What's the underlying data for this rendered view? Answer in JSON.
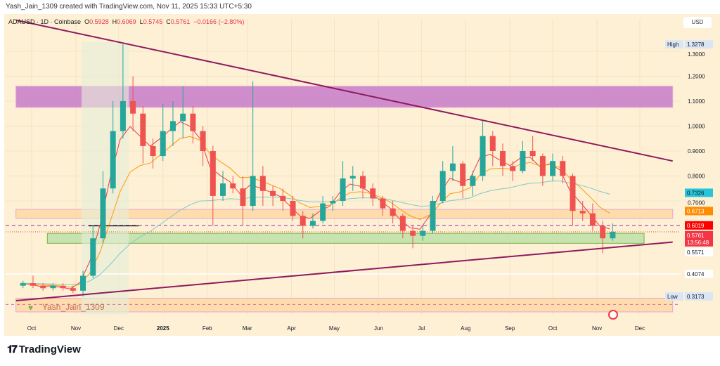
{
  "credit": "Yash_Jain_1309 created with TradingView.com, Nov 11, 2025 15:33 UTC+5:30",
  "legend": {
    "symbol": "ADAUSD · 1D · Coinbase",
    "o_label": "O",
    "o": "0.5928",
    "h_label": "H",
    "h": "0.6069",
    "l_label": "L",
    "l": "0.5745",
    "c_label": "C",
    "c": "0.5761",
    "change": "−0.0166 (−2.80%)"
  },
  "currency_button": "USD",
  "watermark": "Yash_Jain_1309",
  "brand": "TradingView",
  "colors": {
    "up": "#26a69a",
    "down": "#ef5350",
    "trendline": "#8e1a5e",
    "resistance_zone": "#c77dc9",
    "support_zone": "#b9e0a5",
    "ema_fast": "#f23645",
    "ema_mid": "#ff9800",
    "ema_slow": "#80cbc4",
    "background": "#fdf0d5"
  },
  "chart_data": {
    "type": "candlestick",
    "timeframe": "1W approximated from 1D",
    "ylim": [
      0.25,
      1.42
    ],
    "y_ticks": [
      "1.3000",
      "1.2000",
      "1.1000",
      "1.0000",
      "0.9000",
      "0.8000",
      "0.7000"
    ],
    "x_ticks": [
      [
        "Oct",
        "2024-10-01"
      ],
      [
        "Nov",
        "2024-11-01"
      ],
      [
        "Dec",
        "2024-12-01"
      ],
      [
        "2025",
        "2025-01-01"
      ],
      [
        "Feb",
        "2025-02-01"
      ],
      [
        "Mar",
        "2025-03-01"
      ],
      [
        "Apr",
        "2025-04-01"
      ],
      [
        "May",
        "2025-05-01"
      ],
      [
        "Jun",
        "2025-06-01"
      ],
      [
        "Jul",
        "2025-07-01"
      ],
      [
        "Aug",
        "2025-08-01"
      ],
      [
        "Sep",
        "2025-09-01"
      ],
      [
        "Oct",
        "2025-10-01"
      ],
      [
        "Nov",
        "2025-11-01"
      ],
      [
        "Dec",
        "2025-12-01"
      ]
    ],
    "candles": [
      [
        "2024-09-23",
        0.36,
        0.38,
        0.35,
        0.37
      ],
      [
        "2024-09-30",
        0.37,
        0.4,
        0.35,
        0.36
      ],
      [
        "2024-10-07",
        0.36,
        0.37,
        0.34,
        0.35
      ],
      [
        "2024-10-14",
        0.35,
        0.37,
        0.34,
        0.36
      ],
      [
        "2024-10-21",
        0.36,
        0.37,
        0.34,
        0.35
      ],
      [
        "2024-10-28",
        0.35,
        0.36,
        0.33,
        0.34
      ],
      [
        "2024-11-04",
        0.34,
        0.42,
        0.3173,
        0.4
      ],
      [
        "2024-11-11",
        0.4,
        0.6,
        0.39,
        0.55
      ],
      [
        "2024-11-18",
        0.55,
        0.82,
        0.53,
        0.75
      ],
      [
        "2024-11-25",
        0.75,
        1.1,
        0.73,
        0.98
      ],
      [
        "2024-12-02",
        0.98,
        1.3278,
        0.95,
        1.1
      ],
      [
        "2024-12-09",
        1.1,
        1.2,
        0.98,
        1.05
      ],
      [
        "2024-12-16",
        1.05,
        1.08,
        0.85,
        0.92
      ],
      [
        "2024-12-23",
        0.92,
        0.95,
        0.83,
        0.88
      ],
      [
        "2024-12-30",
        0.88,
        1.09,
        0.86,
        0.98
      ],
      [
        "2025-01-06",
        0.98,
        1.1,
        0.92,
        1.02
      ],
      [
        "2025-01-13",
        1.02,
        1.16,
        0.95,
        1.05
      ],
      [
        "2025-01-20",
        1.05,
        1.08,
        0.93,
        0.98
      ],
      [
        "2025-01-27",
        0.98,
        1.0,
        0.84,
        0.9
      ],
      [
        "2025-02-03",
        0.9,
        0.92,
        0.6,
        0.72
      ],
      [
        "2025-02-10",
        0.72,
        0.82,
        0.7,
        0.77
      ],
      [
        "2025-02-17",
        0.77,
        0.8,
        0.73,
        0.75
      ],
      [
        "2025-02-24",
        0.75,
        0.8,
        0.6,
        0.68
      ],
      [
        "2025-03-03",
        0.68,
        1.18,
        0.66,
        0.8
      ],
      [
        "2025-03-10",
        0.8,
        0.84,
        0.68,
        0.74
      ],
      [
        "2025-03-17",
        0.74,
        0.76,
        0.68,
        0.72
      ],
      [
        "2025-03-24",
        0.72,
        0.75,
        0.66,
        0.7
      ],
      [
        "2025-03-31",
        0.7,
        0.72,
        0.62,
        0.64
      ],
      [
        "2025-04-07",
        0.64,
        0.66,
        0.55,
        0.6
      ],
      [
        "2025-04-14",
        0.6,
        0.65,
        0.59,
        0.62
      ],
      [
        "2025-04-21",
        0.62,
        0.72,
        0.61,
        0.69
      ],
      [
        "2025-04-28",
        0.69,
        0.72,
        0.66,
        0.7
      ],
      [
        "2025-05-05",
        0.7,
        0.86,
        0.68,
        0.79
      ],
      [
        "2025-05-12",
        0.79,
        0.84,
        0.74,
        0.8
      ],
      [
        "2025-05-19",
        0.8,
        0.82,
        0.71,
        0.75
      ],
      [
        "2025-05-26",
        0.75,
        0.77,
        0.68,
        0.71
      ],
      [
        "2025-06-02",
        0.71,
        0.72,
        0.64,
        0.67
      ],
      [
        "2025-06-09",
        0.67,
        0.7,
        0.61,
        0.64
      ],
      [
        "2025-06-16",
        0.64,
        0.65,
        0.55,
        0.58
      ],
      [
        "2025-06-23",
        0.58,
        0.6,
        0.51,
        0.56
      ],
      [
        "2025-06-30",
        0.56,
        0.6,
        0.54,
        0.58
      ],
      [
        "2025-07-07",
        0.58,
        0.72,
        0.57,
        0.7
      ],
      [
        "2025-07-14",
        0.7,
        0.86,
        0.69,
        0.82
      ],
      [
        "2025-07-21",
        0.82,
        0.92,
        0.78,
        0.85
      ],
      [
        "2025-07-28",
        0.85,
        0.86,
        0.71,
        0.76
      ],
      [
        "2025-08-04",
        0.76,
        0.82,
        0.72,
        0.8
      ],
      [
        "2025-08-11",
        0.8,
        1.02,
        0.78,
        0.96
      ],
      [
        "2025-08-18",
        0.96,
        0.98,
        0.84,
        0.9
      ],
      [
        "2025-08-25",
        0.9,
        0.93,
        0.8,
        0.84
      ],
      [
        "2025-09-01",
        0.84,
        0.86,
        0.78,
        0.82
      ],
      [
        "2025-09-08",
        0.82,
        0.94,
        0.81,
        0.9
      ],
      [
        "2025-09-15",
        0.9,
        0.96,
        0.86,
        0.88
      ],
      [
        "2025-09-22",
        0.88,
        0.89,
        0.76,
        0.8
      ],
      [
        "2025-09-29",
        0.8,
        0.89,
        0.78,
        0.86
      ],
      [
        "2025-10-06",
        0.86,
        0.88,
        0.77,
        0.8
      ],
      [
        "2025-10-13",
        0.8,
        0.81,
        0.6,
        0.66
      ],
      [
        "2025-10-20",
        0.66,
        0.7,
        0.62,
        0.65
      ],
      [
        "2025-10-27",
        0.65,
        0.69,
        0.58,
        0.6
      ],
      [
        "2025-11-03",
        0.6,
        0.62,
        0.49,
        0.55
      ],
      [
        "2025-11-10",
        0.55,
        0.61,
        0.54,
        0.5761
      ]
    ],
    "moving_averages": [
      {
        "color": "#f23645",
        "period": 3
      },
      {
        "color": "#ff9800",
        "period": 7
      },
      {
        "color": "#80cbc4",
        "period": 28
      }
    ],
    "trendlines": [
      {
        "from": [
          "2024-09-20",
          1.425
        ],
        "to": [
          "2025-12-24",
          0.86
        ],
        "color": "#8e1a5e"
      },
      {
        "from": [
          "2024-09-20",
          0.3
        ],
        "to": [
          "2025-12-24",
          0.535
        ],
        "color": "#8e1a5e"
      }
    ],
    "zones": [
      {
        "from": "2024-09-20",
        "to": "2025-12-24",
        "low": 1.075,
        "high": 1.16,
        "color": "#c77dc9"
      },
      {
        "from": "2024-09-20",
        "to": "2025-12-24",
        "low": 0.63,
        "high": 0.666,
        "color": "#ffd7a0"
      },
      {
        "from": "2024-10-12",
        "to": "2025-12-04",
        "low": 0.53,
        "high": 0.57,
        "color": "#b9e0a5"
      },
      {
        "from": "2024-09-20",
        "to": "2025-12-24",
        "low": 0.255,
        "high": 0.31,
        "color": "#ffd7a0"
      }
    ],
    "price_labels": [
      {
        "text": "1.3278",
        "tag": "High",
        "color": "#dbe6f5",
        "fg": "#131722",
        "value": 1.3278
      },
      {
        "text": "0.7326",
        "color": "#26c6da",
        "fg": "#131722",
        "value": 0.7326
      },
      {
        "text": "0.6713",
        "color": "#ff8c00",
        "fg": "#ffffff",
        "value": 0.6713
      },
      {
        "text": "0.6019",
        "color": "#ff0000",
        "fg": "#ffffff",
        "value": 0.6019
      },
      {
        "text": "0.5761",
        "sub": "13:56:48",
        "color": "#f23645",
        "fg": "#ffffff",
        "value": 0.5761
      },
      {
        "text": "0.5571",
        "color": "#ffffff",
        "fg": "#131722",
        "value": 0.5571
      },
      {
        "text": "0.4074",
        "color": "#ffffff",
        "fg": "#131722",
        "value": 0.4074
      },
      {
        "text": "0.3173",
        "tag": "Low",
        "color": "#dbe6f5",
        "fg": "#131722",
        "value": 0.3173
      }
    ]
  }
}
